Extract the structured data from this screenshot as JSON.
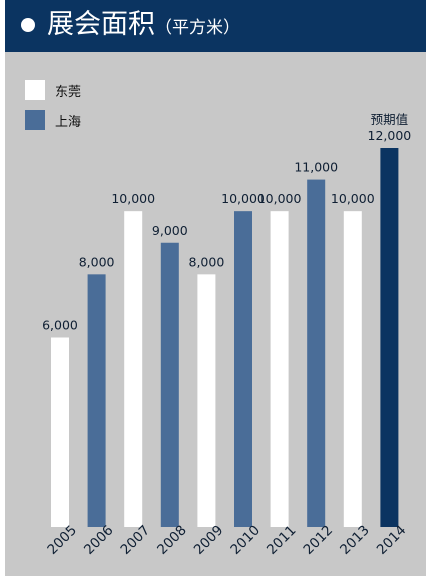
{
  "header": {
    "title": "展会面积",
    "unit": "（平方米）"
  },
  "legend": [
    {
      "label": "东莞",
      "color": "#ffffff"
    },
    {
      "label": "上海",
      "color": "#4a6d98"
    }
  ],
  "chart_data": {
    "type": "bar",
    "title": "展会面积（平方米）",
    "categories": [
      "2005",
      "2006",
      "2007",
      "2008",
      "2009",
      "2010",
      "2011",
      "2012",
      "2013",
      "2014"
    ],
    "series": [
      {
        "name": "东莞",
        "color": "#ffffff",
        "values": [
          6000,
          null,
          10000,
          null,
          8000,
          null,
          10000,
          null,
          10000,
          null
        ]
      },
      {
        "name": "上海",
        "color": "#4a6d98",
        "values": [
          null,
          8000,
          null,
          9000,
          null,
          10000,
          null,
          11000,
          null,
          12000
        ]
      }
    ],
    "data_labels": [
      "6,000",
      "8,000",
      "10,000",
      "9,000",
      "8,000",
      "10,000",
      "10,000",
      "11,000",
      "10,000",
      "12,000"
    ],
    "highlight_color": "#0b3461",
    "annotation": "预期值",
    "ylim": [
      0,
      12000
    ],
    "grid": false,
    "legend_position": "top-left"
  }
}
